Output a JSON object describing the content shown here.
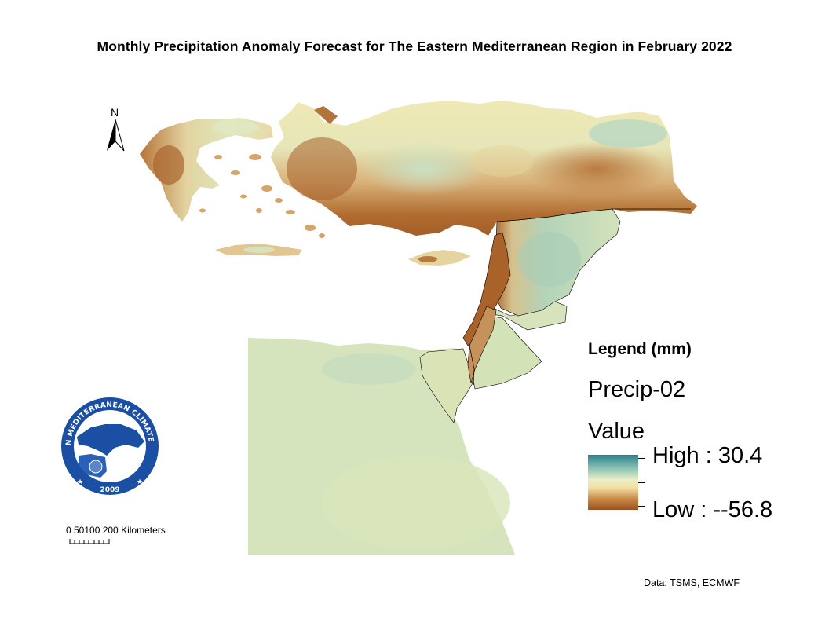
{
  "title": "Monthly Precipitation Anomaly Forecast for The Eastern Mediterranean Region in February 2022",
  "legend": {
    "heading": "Legend (mm)",
    "layer_name": "Precip-02",
    "field": "Value",
    "high_label": "High : 30.4",
    "low_label": "Low : --56.8",
    "high_value": 30.4,
    "low_value": -56.8,
    "ramp_colors": [
      "#2e7f8a",
      "#8cc4b6",
      "#e9efc7",
      "#f1dfa2",
      "#c98a48",
      "#9a5320"
    ]
  },
  "north_arrow": {
    "label": "N",
    "icon": "north-arrow-icon"
  },
  "scale_bar": {
    "text": "0 50100 200 Kilometers",
    "ticks": [
      "0",
      "50",
      "100",
      "200"
    ],
    "unit": "Kilometers"
  },
  "logo": {
    "top_text": "EASTERN MEDITERRANEAN CLIMATE CENTRE",
    "year": "2009"
  },
  "credit": "Data:  TSMS, ECMWF",
  "colors": {
    "dry_strong": "#9a5320",
    "dry": "#c98a48",
    "neutral_dry": "#f1dfa2",
    "neutral": "#e4ebc0",
    "wet": "#a8cfb2",
    "wet_strong": "#2e7f8a",
    "border": "#000000",
    "logo_blue": "#1b4fa3"
  }
}
